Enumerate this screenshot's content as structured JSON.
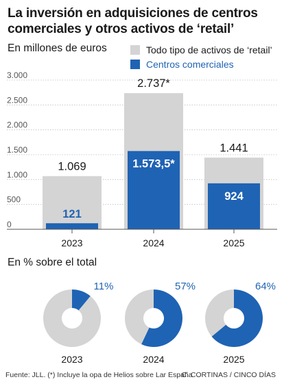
{
  "title": "La inversión en adquisiciones de centros comerciales y otros activos de ‘retail’",
  "chart_data": [
    {
      "type": "bar",
      "subtitle": "En millones de euros",
      "categories": [
        "2023",
        "2024",
        "2025"
      ],
      "series": [
        {
          "name": "Todo tipo de activos de ‘retail’",
          "color": "#d4d4d4",
          "values": [
            1069,
            2737,
            1441
          ],
          "labels": [
            "1.069",
            "2.737*",
            "1.441"
          ]
        },
        {
          "name": "Centros comerciales",
          "color": "#1f63b4",
          "values": [
            121,
            1573.5,
            924
          ],
          "labels": [
            "121",
            "1.573,5*",
            "924"
          ]
        }
      ],
      "y_ticks": [
        0,
        500,
        1000,
        1500,
        2000,
        2500,
        3000
      ],
      "y_tick_labels": [
        "0",
        "500",
        "1.000",
        "1.500",
        "2.000",
        "2.500",
        "3.000"
      ],
      "ylim": [
        0,
        3000
      ],
      "grid": true
    },
    {
      "type": "pie",
      "subtitle": "En % sobre el total",
      "categories": [
        "2023",
        "2024",
        "2025"
      ],
      "values": [
        11,
        57,
        64
      ],
      "labels": [
        "11%",
        "57%",
        "64%"
      ],
      "colors": {
        "share": "#1f63b4",
        "rest": "#d4d4d4"
      }
    }
  ],
  "footer": {
    "source": "Fuente: JLL. (*) Incluye la opa de Helios sobre Lar España",
    "credit": "C. CORTINAS / CINCO DÍAS"
  }
}
